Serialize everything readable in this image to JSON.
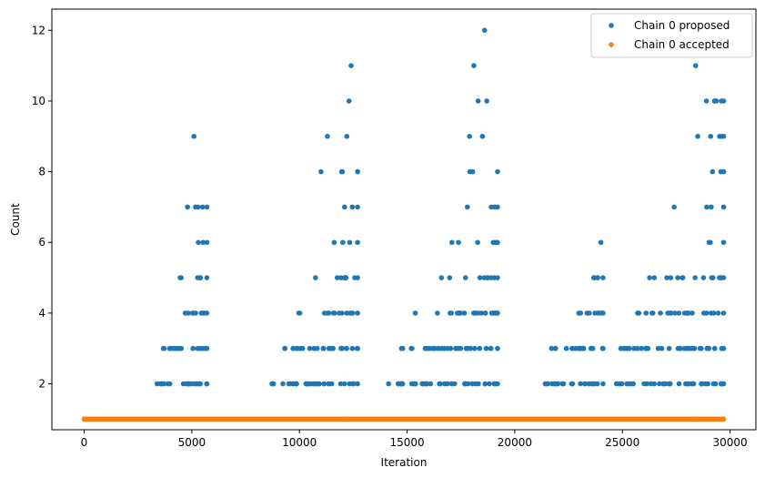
{
  "chart_data": {
    "type": "scatter",
    "title": "",
    "xlabel": "Iteration",
    "ylabel": "Count",
    "xlim": [
      -1500,
      31200
    ],
    "ylim": [
      0.7,
      12.6
    ],
    "x_ticks": [
      0,
      5000,
      10000,
      15000,
      20000,
      25000,
      30000
    ],
    "y_ticks": [
      2,
      4,
      6,
      8,
      10,
      12
    ],
    "grid": false,
    "legend_position": "top-right",
    "series": [
      {
        "name": "Chain 0 proposed",
        "color": "#1f77b4",
        "clusters": [
          {
            "x_range": [
              3100,
              5700
            ],
            "row_x_start": {
              "2": 3100,
              "3": 3300,
              "4": 3900,
              "5": 4000,
              "6": 4700,
              "7": 4700
            }
          },
          {
            "x_range": [
              8700,
              12700
            ],
            "row_x_start": {
              "2": 8700,
              "3": 9000,
              "4": 9800,
              "5": 9800,
              "6": 10800,
              "7": 11400,
              "8": 11000
            }
          },
          {
            "x_range": [
              14100,
              19200
            ],
            "row_x_start": {
              "2": 14100,
              "3": 14600,
              "4": 14700,
              "5": 16200,
              "6": 16100,
              "7": 16700,
              "8": 16700
            }
          },
          {
            "x_range": [
              21300,
              24100
            ],
            "row_x_start": {
              "2": 21300,
              "3": 21600,
              "4": 22200,
              "5": 22800
            }
          },
          {
            "x_range": [
              24700,
              29700
            ],
            "row_x_start": {
              "2": 24700,
              "3": 24800,
              "4": 25300,
              "5": 25300,
              "6": 27800,
              "7": 27000,
              "8": 27800,
              "9": 28400,
              "10": 28700
            }
          }
        ],
        "peak_points": [
          {
            "x": 5100,
            "y": 9
          },
          {
            "x": 4800,
            "y": 7
          },
          {
            "x": 5500,
            "y": 7
          },
          {
            "x": 11000,
            "y": 8
          },
          {
            "x": 11300,
            "y": 9
          },
          {
            "x": 12200,
            "y": 9
          },
          {
            "x": 12300,
            "y": 10
          },
          {
            "x": 12400,
            "y": 11
          },
          {
            "x": 17900,
            "y": 9
          },
          {
            "x": 18100,
            "y": 11
          },
          {
            "x": 18300,
            "y": 10
          },
          {
            "x": 18500,
            "y": 9
          },
          {
            "x": 18600,
            "y": 12
          },
          {
            "x": 18700,
            "y": 10
          },
          {
            "x": 24000,
            "y": 6
          },
          {
            "x": 28400,
            "y": 11
          },
          {
            "x": 28500,
            "y": 9
          },
          {
            "x": 28900,
            "y": 10
          },
          {
            "x": 29100,
            "y": 9
          },
          {
            "x": 29300,
            "y": 10
          },
          {
            "x": 29600,
            "y": 10
          }
        ]
      },
      {
        "name": "Chain 0 accepted",
        "color": "#ff7f0e",
        "constant_y": 1,
        "x_range": [
          0,
          29700
        ]
      }
    ]
  }
}
